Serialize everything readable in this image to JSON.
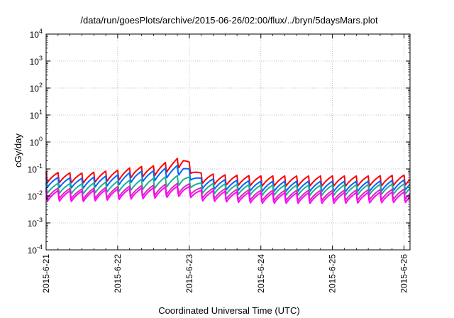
{
  "chart_data": {
    "type": "line",
    "title": "/data/run/goesPlots/archive/2015-06-26/02:00/flux/../bryn/5daysMars.plot",
    "xlabel": "Coordinated Universal Time (UTC)",
    "ylabel": "cGy/day",
    "yscale": "log",
    "ylim": [
      0.0001,
      10000
    ],
    "xlim": [
      "2015-06-21 00:00",
      "2015-06-26 02:00"
    ],
    "x_ticks": [
      "2015-6-21",
      "2015-6-22",
      "2015-6-23",
      "2015-6-24",
      "2015-6-25",
      "2015-6-26"
    ],
    "y_ticks": [
      {
        "value": 0.0001,
        "base": "10",
        "exp": "-4"
      },
      {
        "value": 0.001,
        "base": "10",
        "exp": "-3"
      },
      {
        "value": 0.01,
        "base": "10",
        "exp": "-2"
      },
      {
        "value": 0.1,
        "base": "10",
        "exp": "-1"
      },
      {
        "value": 1,
        "base": "10",
        "exp": "0"
      },
      {
        "value": 10,
        "base": "10",
        "exp": "1"
      },
      {
        "value": 100,
        "base": "10",
        "exp": "2"
      },
      {
        "value": 1000,
        "base": "10",
        "exp": "3"
      },
      {
        "value": 10000,
        "base": "10",
        "exp": "4"
      }
    ],
    "grid": true,
    "legend": "none",
    "sawtooth_period_hours": 4,
    "series": [
      {
        "color": "#ff0000",
        "peaks": [
          [
            0,
            0.075
          ],
          [
            12,
            0.07
          ],
          [
            24,
            0.09
          ],
          [
            30,
            0.12
          ],
          [
            36,
            0.13
          ],
          [
            42,
            0.2
          ],
          [
            46,
            0.3
          ],
          [
            48,
            0.18
          ],
          [
            52,
            0.07
          ],
          [
            60,
            0.06
          ],
          [
            72,
            0.055
          ],
          [
            96,
            0.055
          ],
          [
            110,
            0.055
          ],
          [
            122,
            0.06
          ]
        ],
        "trough_ratio": 0.4
      },
      {
        "color": "#0066ff",
        "peaks": [
          [
            0,
            0.05
          ],
          [
            12,
            0.045
          ],
          [
            24,
            0.06
          ],
          [
            30,
            0.08
          ],
          [
            36,
            0.085
          ],
          [
            42,
            0.12
          ],
          [
            46,
            0.15
          ],
          [
            48,
            0.1
          ],
          [
            52,
            0.045
          ],
          [
            60,
            0.04
          ],
          [
            72,
            0.035
          ],
          [
            96,
            0.035
          ],
          [
            110,
            0.035
          ],
          [
            122,
            0.04
          ]
        ],
        "trough_ratio": 0.4
      },
      {
        "color": "#20b090",
        "peaks": [
          [
            0,
            0.03
          ],
          [
            12,
            0.028
          ],
          [
            24,
            0.035
          ],
          [
            36,
            0.045
          ],
          [
            46,
            0.06
          ],
          [
            48,
            0.05
          ],
          [
            52,
            0.03
          ],
          [
            72,
            0.025
          ],
          [
            96,
            0.025
          ],
          [
            122,
            0.028
          ]
        ],
        "trough_ratio": 0.4
      },
      {
        "color": "#cc33aa",
        "peaks": [
          [
            0,
            0.02
          ],
          [
            12,
            0.018
          ],
          [
            24,
            0.022
          ],
          [
            36,
            0.025
          ],
          [
            46,
            0.03
          ],
          [
            48,
            0.028
          ],
          [
            52,
            0.02
          ],
          [
            72,
            0.016
          ],
          [
            96,
            0.016
          ],
          [
            122,
            0.018
          ]
        ],
        "trough_ratio": 0.4
      },
      {
        "color": "#ff00ff",
        "peaks": [
          [
            0,
            0.016
          ],
          [
            12,
            0.015
          ],
          [
            24,
            0.018
          ],
          [
            36,
            0.02
          ],
          [
            46,
            0.024
          ],
          [
            48,
            0.022
          ],
          [
            52,
            0.016
          ],
          [
            72,
            0.013
          ],
          [
            96,
            0.013
          ],
          [
            122,
            0.014
          ]
        ],
        "trough_ratio": 0.38
      }
    ]
  }
}
